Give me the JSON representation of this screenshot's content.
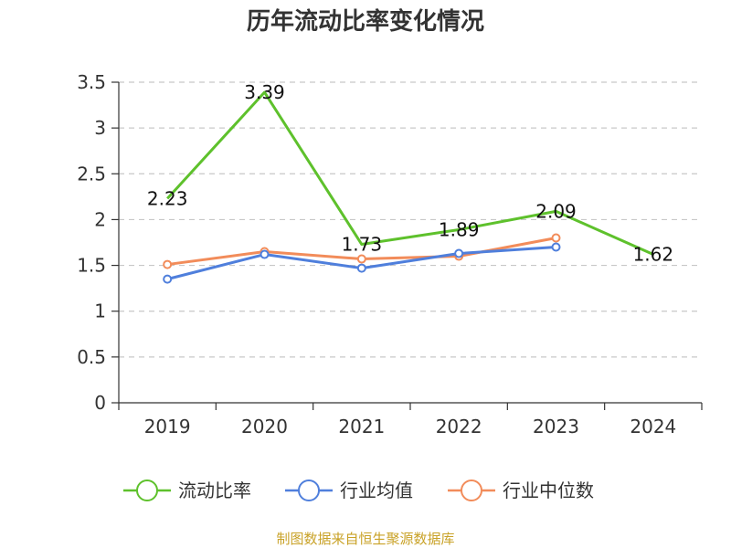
{
  "chart_data": {
    "type": "line",
    "title": "历年流动比率变化情况",
    "categories": [
      "2019",
      "2020",
      "2021",
      "2022",
      "2023",
      "2024"
    ],
    "ylim": [
      0,
      3.5
    ],
    "yticks": [
      "0",
      "0.5",
      "1",
      "1.5",
      "2",
      "2.5",
      "3",
      "3.5"
    ],
    "grid": true,
    "legend_position": "bottom",
    "series": [
      {
        "name": "流动比率",
        "color": "#5ec12c",
        "values": [
          2.23,
          3.39,
          1.73,
          1.89,
          2.09,
          1.62
        ],
        "labels": [
          "2.23",
          "3.39",
          "1.73",
          "1.89",
          "2.09",
          "1.62"
        ],
        "markers": false
      },
      {
        "name": "行业均值",
        "color": "#4f7fdc",
        "values": [
          1.35,
          1.62,
          1.47,
          1.63,
          1.7,
          null
        ],
        "markers": true
      },
      {
        "name": "行业中位数",
        "color": "#f28c5a",
        "values": [
          1.51,
          1.65,
          1.57,
          1.6,
          1.8,
          null
        ],
        "markers": true
      }
    ]
  },
  "source_text": "制图数据来自恒生聚源数据库"
}
